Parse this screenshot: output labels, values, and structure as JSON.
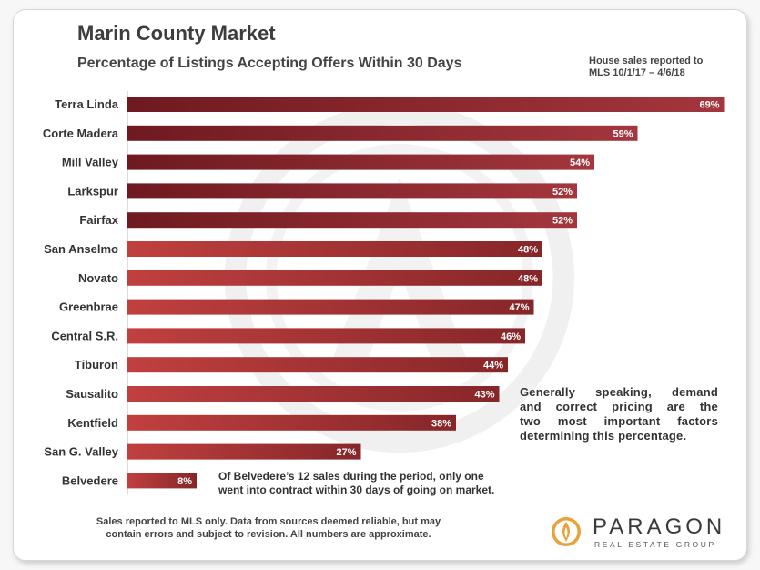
{
  "header": {
    "title": "Marin County Market",
    "subtitle": "Percentage of Listings Accepting Offers Within 30 Days",
    "note_line1": "House sales reported to",
    "note_line2": "MLS 10/1/17 – 4/6/18"
  },
  "chart_data": {
    "type": "bar",
    "orientation": "horizontal",
    "title": "Percentage of Listings Accepting Offers Within 30 Days",
    "categories": [
      "Terra Linda",
      "Corte Madera",
      "Mill Valley",
      "Larkspur",
      "Fairfax",
      "San Anselmo",
      "Novato",
      "Greenbrae",
      "Central S.R.",
      "Tiburon",
      "Sausalito",
      "Kentfield",
      "San G. Valley",
      "Belvedere"
    ],
    "values": [
      69,
      59,
      54,
      52,
      52,
      48,
      48,
      47,
      46,
      44,
      43,
      38,
      27,
      8
    ],
    "value_labels": [
      "69%",
      "59%",
      "54%",
      "52%",
      "52%",
      "48%",
      "48%",
      "47%",
      "46%",
      "44%",
      "43%",
      "38%",
      "27%",
      "8%"
    ],
    "xlim": [
      0,
      70
    ],
    "unit": "%",
    "colors": {
      "dark_bar_start": "#6e1a20",
      "dark_bar_end": "#a4363d",
      "light_bar_start": "#c0403f",
      "light_bar_end": "#862629"
    }
  },
  "annotations": {
    "comment_lines": [
      "Generally speaking, demand",
      "and correct pricing are the",
      "two most important factors",
      "determining this percentage."
    ],
    "belvedere_lines": [
      "Of Belvedere’s 12 sales during the period, only one",
      "went into contract within 30 days of going on market."
    ]
  },
  "footer": {
    "line1": "Sales reported to MLS only. Data from sources deemed reliable, but may",
    "line2": "contain errors and subject to revision. All numbers are approximate."
  },
  "logo": {
    "name": "PARAGON",
    "tagline": "REAL ESTATE GROUP",
    "icon": "paragon-flame-icon",
    "accent_color": "#e8a23a"
  }
}
